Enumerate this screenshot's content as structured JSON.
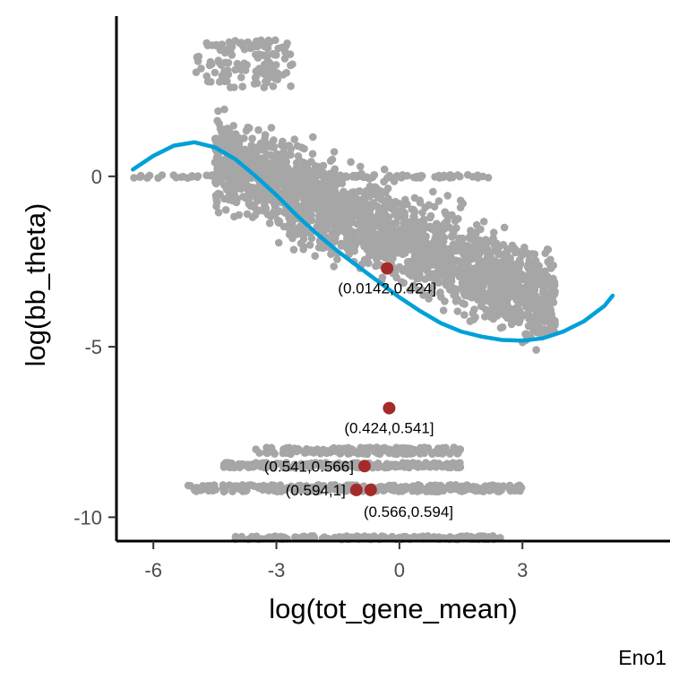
{
  "chart_data": {
    "type": "scatter",
    "xlabel": "log(tot_gene_mean)",
    "ylabel": "log(bb_theta)",
    "caption": "Eno1",
    "xlim": [
      -6.9,
      6.6
    ],
    "ylim": [
      -10.7,
      4.7
    ],
    "x_ticks": [
      -6,
      -3,
      0,
      3
    ],
    "x_tick_labels": [
      "-6",
      "-3",
      "0",
      "3"
    ],
    "y_ticks": [
      0,
      -5,
      -10
    ],
    "y_tick_labels": [
      "0",
      "-5",
      "-10"
    ],
    "grid": false,
    "legend": "none",
    "colors": {
      "points": "#a6a6a6",
      "fit": "#00a0d8",
      "highlight": "#a52a2a"
    },
    "point_clusters": [
      {
        "x_range": [
          -5.0,
          -2.6
        ],
        "y_range": [
          2.6,
          4.0
        ],
        "count": 130
      },
      {
        "x_range": [
          -4.5,
          3.8
        ],
        "y_range": [
          -6.5,
          2.5
        ],
        "count": 2200,
        "trend": "declining"
      },
      {
        "x_range": [
          -6.5,
          2.2
        ],
        "y_range": [
          -0.05,
          0.05
        ],
        "count": 120
      },
      {
        "x_range": [
          -3.5,
          1.5
        ],
        "y_range": [
          -8.15,
          -7.95
        ],
        "count": 180
      },
      {
        "x_range": [
          -4.3,
          1.5
        ],
        "y_range": [
          -8.55,
          -8.4
        ],
        "count": 220
      },
      {
        "x_range": [
          -5.2,
          3.0
        ],
        "y_range": [
          -9.25,
          -9.05
        ],
        "count": 300
      },
      {
        "x_range": [
          -4.0,
          2.5
        ],
        "y_range": [
          -10.65,
          -10.55
        ],
        "count": 150
      }
    ],
    "fit_curve": {
      "x": [
        -6.5,
        -6.0,
        -5.5,
        -5.0,
        -4.5,
        -4.0,
        -3.5,
        -3.0,
        -2.5,
        -2.0,
        -1.5,
        -1.0,
        -0.5,
        0.0,
        0.5,
        1.0,
        1.5,
        2.0,
        2.5,
        3.0,
        3.5,
        4.0,
        4.5,
        5.0,
        5.2
      ],
      "y": [
        0.2,
        0.6,
        0.9,
        1.0,
        0.85,
        0.5,
        0.0,
        -0.55,
        -1.15,
        -1.7,
        -2.2,
        -2.65,
        -3.1,
        -3.55,
        -3.95,
        -4.3,
        -4.55,
        -4.7,
        -4.8,
        -4.82,
        -4.75,
        -4.55,
        -4.25,
        -3.8,
        -3.5
      ]
    },
    "highlighted_points": [
      {
        "label": "(0.0142,0.424]",
        "x": -0.3,
        "y": -2.7,
        "label_anchor": "below"
      },
      {
        "label": "(0.424,0.541]",
        "x": -0.25,
        "y": -6.8,
        "label_anchor": "below"
      },
      {
        "label": "(0.541,0.566]",
        "x": -0.85,
        "y": -8.5,
        "label_anchor": "left"
      },
      {
        "label": "(0.594,1]",
        "x": -1.05,
        "y": -9.2,
        "label_anchor": "left"
      },
      {
        "label": "(0.566,0.594]",
        "x": -0.7,
        "y": -9.2,
        "label_anchor": "below-right"
      }
    ]
  }
}
